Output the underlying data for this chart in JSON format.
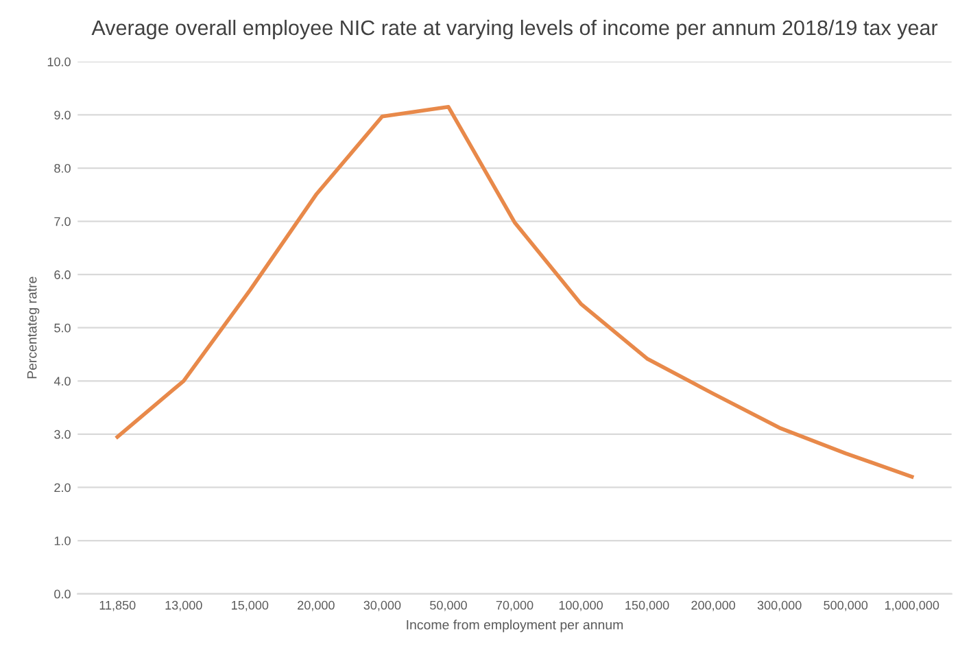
{
  "chart_data": {
    "type": "line",
    "title": "Average overall employee NIC rate at varying levels of income per annum 2018/19 tax year",
    "xlabel": "Income from employment per annum",
    "ylabel": "Percentateg ratre",
    "categories": [
      "11,850",
      "13,000",
      "15,000",
      "20,000",
      "30,000",
      "50,000",
      "70,000",
      "100,000",
      "150,000",
      "200,000",
      "300,000",
      "500,000",
      "1,000,000"
    ],
    "series": [
      {
        "color": "#e8894a",
        "values": [
          2.95,
          4.0,
          5.7,
          7.5,
          8.97,
          9.15,
          6.98,
          5.45,
          4.42,
          3.76,
          3.12,
          2.64,
          2.2
        ]
      }
    ],
    "ylim": [
      0,
      10
    ],
    "yticks": [
      {
        "value": 0,
        "label": "0.0"
      },
      {
        "value": 1,
        "label": "1.0"
      },
      {
        "value": 2,
        "label": "2.0"
      },
      {
        "value": 3,
        "label": "3.0"
      },
      {
        "value": 4,
        "label": "4.0"
      },
      {
        "value": 5,
        "label": "5.0"
      },
      {
        "value": 6,
        "label": "6.0"
      },
      {
        "value": 7,
        "label": "7.0"
      },
      {
        "value": 8,
        "label": "8.0"
      },
      {
        "value": 9,
        "label": "9.0"
      },
      {
        "value": 10,
        "label": "10.0"
      }
    ],
    "grid": "y",
    "legend": false,
    "marker": "none",
    "line_style": "solid"
  }
}
